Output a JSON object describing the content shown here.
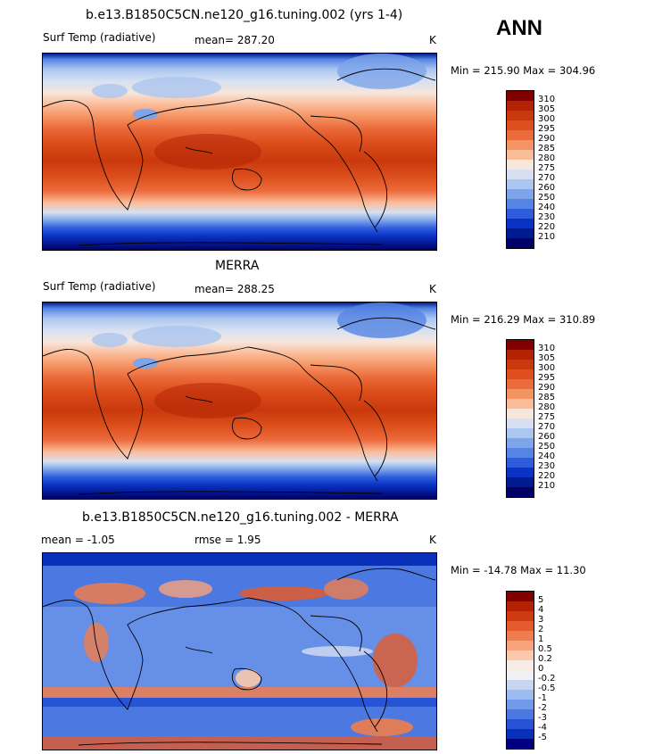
{
  "season": "ANN",
  "units": "K",
  "panels": [
    {
      "title": "b.e13.B1850C5CN.ne120_g16.tuning.002 (yrs 1-4)",
      "left_label": "Surf Temp (radiative)",
      "stat_text": "mean= 287.20",
      "units": "K",
      "minmax": "Min = 215.90 Max = 304.96",
      "colorbar_labels": [
        "310",
        "305",
        "300",
        "295",
        "290",
        "285",
        "280",
        "275",
        "270",
        "260",
        "250",
        "240",
        "230",
        "220",
        "210"
      ]
    },
    {
      "title": "MERRA",
      "left_label": "Surf Temp (radiative)",
      "stat_text": "mean= 288.25",
      "units": "K",
      "minmax": "Min = 216.29 Max = 310.89",
      "colorbar_labels": [
        "310",
        "305",
        "300",
        "295",
        "290",
        "285",
        "280",
        "275",
        "270",
        "260",
        "250",
        "240",
        "230",
        "220",
        "210"
      ]
    },
    {
      "title": "b.e13.B1850C5CN.ne120_g16.tuning.002 - MERRA",
      "left_label": "mean =   -1.05",
      "stat_text": "rmse =    1.95",
      "units": "K",
      "minmax": "Min = -14.78 Max =  11.30",
      "colorbar_labels": [
        "5",
        "4",
        "3",
        "2",
        "1",
        "0.5",
        "0.2",
        "0",
        "-0.2",
        "-0.5",
        "-1",
        "-2",
        "-3",
        "-4",
        "-5"
      ]
    }
  ],
  "colors": {
    "temp_scale": [
      "#800000",
      "#b22203",
      "#c9390d",
      "#dd4f1d",
      "#ec6b3c",
      "#f59463",
      "#fbbc9a",
      "#f6e6dc",
      "#d6e0f2",
      "#abc6f0",
      "#7ea5ea",
      "#5584e4",
      "#2d5ddd",
      "#0a33c4",
      "#001a8f",
      "#000066"
    ],
    "diff_scale": [
      "#800000",
      "#b22203",
      "#d03a10",
      "#e45a2c",
      "#f07d4d",
      "#f7a47d",
      "#fbc9ac",
      "#f6ece3",
      "#f3f0f4",
      "#c7d5f1",
      "#9cbbf0",
      "#7299e9",
      "#4c78e2",
      "#2754d6",
      "#0a2fb9",
      "#000080"
    ],
    "coastline": "#000000"
  }
}
